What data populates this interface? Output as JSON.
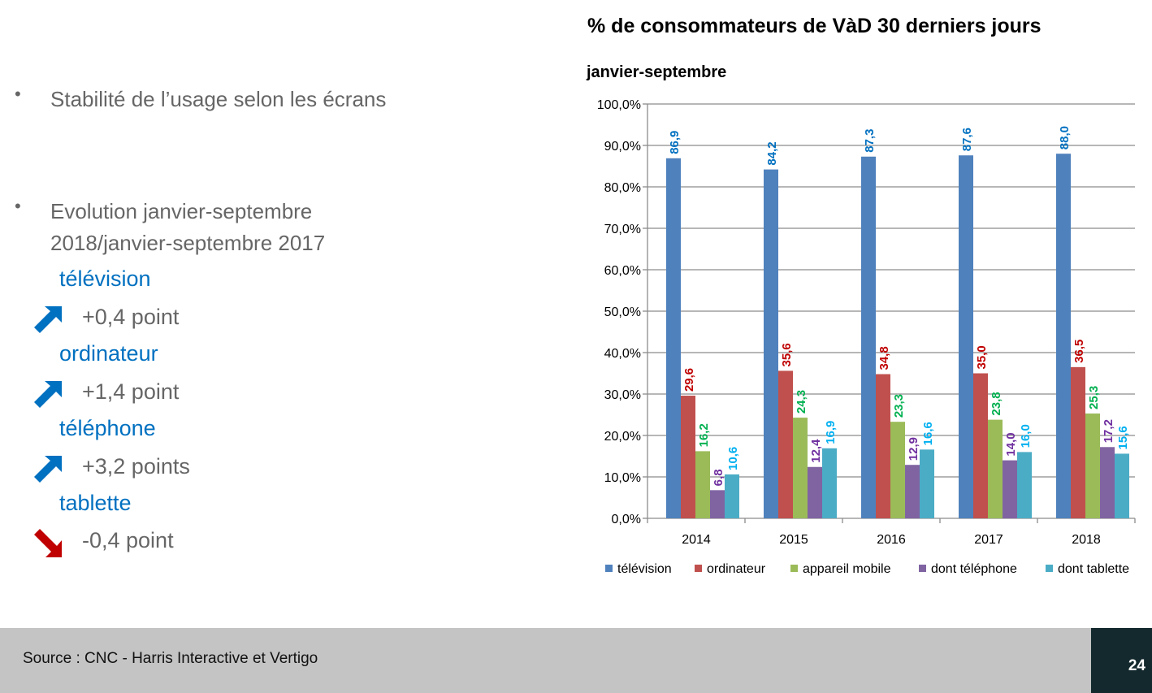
{
  "bullets": [
    {
      "text": "Stabilité de l’usage selon les écrans"
    },
    {
      "line1": "Evolution janvier-septembre",
      "line2": "2018/janvier-septembre 2017"
    }
  ],
  "bullet_glyph": "•",
  "evolution": [
    {
      "screen": "télévision",
      "change": "+0,4 point",
      "direction": "up",
      "arrow_color": "#0070C0"
    },
    {
      "screen": "ordinateur",
      "change": "+1,4 point",
      "direction": "up",
      "arrow_color": "#0070C0"
    },
    {
      "screen": "téléphone",
      "change": "+3,2 points",
      "direction": "up",
      "arrow_color": "#0070C0"
    },
    {
      "screen": "tablette",
      "change": "-0,4 point",
      "direction": "down",
      "arrow_color": "#C00000"
    }
  ],
  "footer": {
    "source": "Source : CNC - Harris Interactive et Vertigo",
    "page_number": "24"
  },
  "chart_data": {
    "type": "bar",
    "title": "% de consommateurs de VàD 30 derniers jours",
    "subtitle": "janvier-septembre",
    "xlabel": "",
    "ylabel": "",
    "categories": [
      "2014",
      "2015",
      "2016",
      "2017",
      "2018"
    ],
    "ylim": [
      0,
      100
    ],
    "yticks": [
      "0,0%",
      "10,0%",
      "20,0%",
      "30,0%",
      "40,0%",
      "50,0%",
      "60,0%",
      "70,0%",
      "80,0%",
      "90,0%",
      "100,0%"
    ],
    "grid": true,
    "legend_position": "bottom",
    "series": [
      {
        "name": "télévision",
        "color": "#4F81BD",
        "label_color": "#0070C0",
        "values": [
          86.9,
          84.2,
          87.3,
          87.6,
          88.0
        ],
        "labels": [
          "86,9",
          "84,2",
          "87,3",
          "87,6",
          "88,0"
        ]
      },
      {
        "name": "ordinateur",
        "color": "#C0504D",
        "label_color": "#C00000",
        "values": [
          29.6,
          35.6,
          34.8,
          35.0,
          36.5
        ],
        "labels": [
          "29,6",
          "35,6",
          "34,8",
          "35,0",
          "36,5"
        ]
      },
      {
        "name": "appareil mobile",
        "color": "#9BBB59",
        "label_color": "#00B050",
        "values": [
          16.2,
          24.3,
          23.3,
          23.8,
          25.3
        ],
        "labels": [
          "16,2",
          "24,3",
          "23,3",
          "23,8",
          "25,3"
        ]
      },
      {
        "name": "dont téléphone",
        "color": "#8064A2",
        "label_color": "#7030A0",
        "values": [
          6.8,
          12.4,
          12.9,
          14.0,
          17.2
        ],
        "labels": [
          "6,8",
          "12,4",
          "12,9",
          "14,0",
          "17,2"
        ]
      },
      {
        "name": "dont tablette",
        "color": "#4BACC6",
        "label_color": "#00B0F0",
        "values": [
          10.6,
          16.9,
          16.6,
          16.0,
          15.6
        ],
        "labels": [
          "10,6",
          "16,9",
          "16,6",
          "16,0",
          "15,6"
        ]
      }
    ]
  }
}
